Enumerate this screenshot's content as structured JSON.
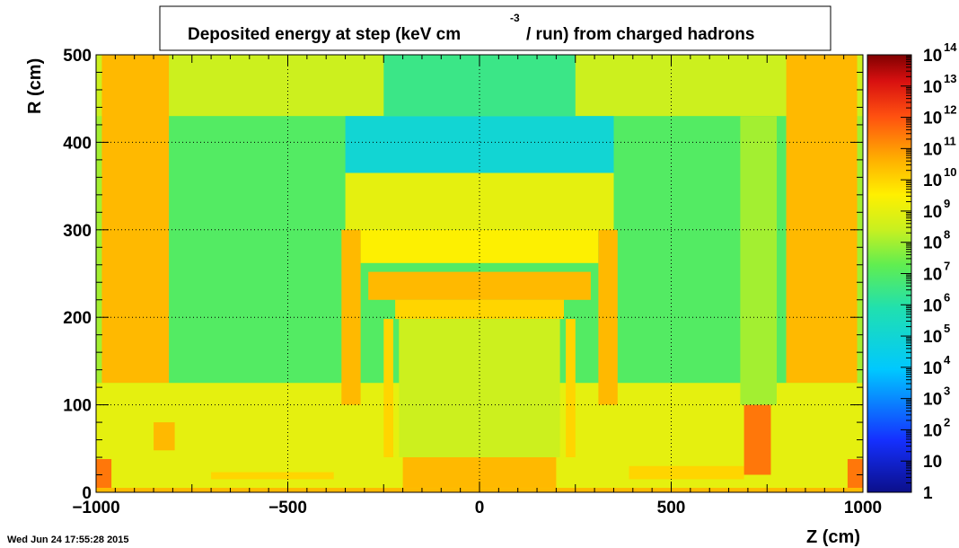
{
  "chart_data": {
    "type": "heatmap",
    "title_main": "Deposited energy at step (keV cm",
    "title_superscript": "-3",
    "title_rest": "/ run)  from   charged hadrons",
    "xlabel": "Z (cm)",
    "ylabel": "R (cm)",
    "xlim": [
      -1000,
      1000
    ],
    "ylim": [
      0,
      500
    ],
    "x_ticks": [
      -1000,
      -500,
      0,
      500,
      1000
    ],
    "x_tick_labels": [
      "−1000",
      "−500",
      "0",
      "500",
      "1000"
    ],
    "y_ticks": [
      0,
      100,
      200,
      300,
      400,
      500
    ],
    "y_tick_labels": [
      "0",
      "100",
      "200",
      "300",
      "400",
      "500"
    ],
    "grid": true,
    "colorbar": {
      "scale": "log",
      "range": [
        1,
        100000000000000.0
      ],
      "labels": [
        {
          "base": "1",
          "exp": "",
          "value": 1
        },
        {
          "base": "10",
          "exp": "",
          "value": 10
        },
        {
          "base": "10",
          "exp": "2",
          "value": 100
        },
        {
          "base": "10",
          "exp": "3",
          "value": 1000
        },
        {
          "base": "10",
          "exp": "4",
          "value": 10000
        },
        {
          "base": "10",
          "exp": "5",
          "value": 100000
        },
        {
          "base": "10",
          "exp": "6",
          "value": 1000000
        },
        {
          "base": "10",
          "exp": "7",
          "value": 10000000
        },
        {
          "base": "10",
          "exp": "8",
          "value": 100000000
        },
        {
          "base": "10",
          "exp": "9",
          "value": 1000000000
        },
        {
          "base": "10",
          "exp": "10",
          "value": 10000000000
        },
        {
          "base": "10",
          "exp": "11",
          "value": 100000000000
        },
        {
          "base": "10",
          "exp": "12",
          "value": 1000000000000
        },
        {
          "base": "10",
          "exp": "13",
          "value": 10000000000000
        },
        {
          "base": "10",
          "exp": "14",
          "value": 100000000000000
        }
      ]
    },
    "regions": [
      {
        "zmin": -1000,
        "zmax": 1000,
        "rmin": 0,
        "rmax": 500,
        "value": 100000000.0
      },
      {
        "zmin": -1000,
        "zmax": 1000,
        "rmin": 430,
        "rmax": 500,
        "value": 300000000.0
      },
      {
        "zmin": -810,
        "zmax": 800,
        "rmin": 125,
        "rmax": 430,
        "value": 10000000.0
      },
      {
        "zmin": -350,
        "zmax": 350,
        "rmin": 365,
        "rmax": 430,
        "value": 100000.0
      },
      {
        "zmin": -250,
        "zmax": 250,
        "rmin": 430,
        "rmax": 500,
        "value": 3000000.0
      },
      {
        "zmin": -985,
        "zmax": -810,
        "rmin": 125,
        "rmax": 500,
        "value": 30000000000.0
      },
      {
        "zmin": 800,
        "zmax": 985,
        "rmin": 125,
        "rmax": 500,
        "value": 30000000000.0
      },
      {
        "zmin": -1000,
        "zmax": 1000,
        "rmin": 0,
        "rmax": 125,
        "value": 1000000000.0
      },
      {
        "zmin": -350,
        "zmax": 350,
        "rmin": 300,
        "rmax": 365,
        "value": 1000000000.0
      },
      {
        "zmin": -310,
        "zmax": 310,
        "rmin": 262,
        "rmax": 300,
        "value": 3000000000.0
      },
      {
        "zmin": -360,
        "zmax": -310,
        "rmin": 100,
        "rmax": 300,
        "value": 30000000000.0
      },
      {
        "zmin": 310,
        "zmax": 360,
        "rmin": 100,
        "rmax": 300,
        "value": 30000000000.0
      },
      {
        "zmin": -290,
        "zmax": 290,
        "rmin": 220,
        "rmax": 252,
        "value": 30000000000.0
      },
      {
        "zmin": -220,
        "zmax": 220,
        "rmin": 198,
        "rmax": 220,
        "value": 10000000000.0
      },
      {
        "zmin": -250,
        "zmax": -225,
        "rmin": 40,
        "rmax": 198,
        "value": 10000000000.0
      },
      {
        "zmin": 225,
        "zmax": 250,
        "rmin": 40,
        "rmax": 198,
        "value": 10000000000.0
      },
      {
        "zmin": -210,
        "zmax": 210,
        "rmin": 40,
        "rmax": 198,
        "value": 300000000.0
      },
      {
        "zmin": -200,
        "zmax": 200,
        "rmin": 5,
        "rmax": 40,
        "value": 30000000000.0
      },
      {
        "zmin": -1000,
        "zmax": -960,
        "rmin": 5,
        "rmax": 38,
        "value": 300000000000.0
      },
      {
        "zmin": 960,
        "zmax": 1000,
        "rmin": 5,
        "rmax": 38,
        "value": 300000000000.0
      },
      {
        "zmin": -850,
        "zmax": -795,
        "rmin": 48,
        "rmax": 80,
        "value": 30000000000.0
      },
      {
        "zmin": 390,
        "zmax": 690,
        "rmin": 15,
        "rmax": 30,
        "value": 10000000000.0
      },
      {
        "zmin": -700,
        "zmax": -380,
        "rmin": 15,
        "rmax": 23,
        "value": 10000000000.0
      },
      {
        "zmin": 690,
        "zmax": 760,
        "rmin": 20,
        "rmax": 100,
        "value": 300000000000.0
      },
      {
        "zmin": 680,
        "zmax": 775,
        "rmin": 100,
        "rmax": 430,
        "value": 100000000.0
      },
      {
        "zmin": -1000,
        "zmax": 1000,
        "rmin": 0,
        "rmax": 5,
        "value": 30000000000.0
      }
    ]
  },
  "footer": {
    "date": "Wed Jun 24 17:55:28 2015"
  }
}
